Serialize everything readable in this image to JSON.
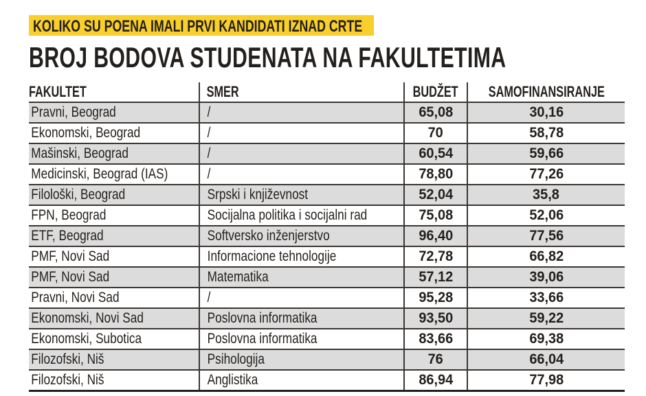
{
  "banner": "KOLIKO SU POENA IMALI PRVI KANDIDATI IZNAD CRTE",
  "title": "BROJ BODOVA STUDENATA NA FAKULTETIMA",
  "colors": {
    "banner": "#f8cf2c",
    "row_shade": "#dcdcdc",
    "text": "#231f1c"
  },
  "table": {
    "headers": [
      "FAKULTET",
      "SMER",
      "BUDŽET",
      "SAMOFINANSIRANJE"
    ],
    "rows": [
      [
        "Pravni, Beograd",
        "/",
        "65,08",
        "30,16"
      ],
      [
        "Ekonomski, Beograd",
        "/",
        "70",
        "58,78"
      ],
      [
        "Mašinski, Beograd",
        "/",
        "60,54",
        "59,66"
      ],
      [
        "Medicinski, Beograd (IAS)",
        "/",
        "78,80",
        "77,26"
      ],
      [
        "Filološki, Beograd",
        "Srpski i književnost",
        "52,04",
        "35,8"
      ],
      [
        "FPN, Beograd",
        "Socijalna politika i socijalni rad",
        "75,08",
        "52,06"
      ],
      [
        "ETF, Beograd",
        "Softversko inženjerstvo",
        "96,40",
        "77,56"
      ],
      [
        "PMF, Novi Sad",
        "Informacione tehnologije",
        "72,78",
        "66,82"
      ],
      [
        "PMF, Novi Sad",
        "Matematika",
        "57,12",
        "39,06"
      ],
      [
        "Pravni, Novi Sad",
        "/",
        "95,28",
        "33,66"
      ],
      [
        "Ekonomski, Novi Sad",
        "Poslovna informatika",
        "93,50",
        "59,22"
      ],
      [
        "Ekonomski, Subotica",
        "Poslovna informatika",
        "83,66",
        "69,38"
      ],
      [
        "Filozofski, Niš",
        "Psihologija",
        "76",
        "66,04"
      ],
      [
        "Filozofski, Niš",
        "Anglistika",
        "86,94",
        "77,98"
      ]
    ]
  }
}
